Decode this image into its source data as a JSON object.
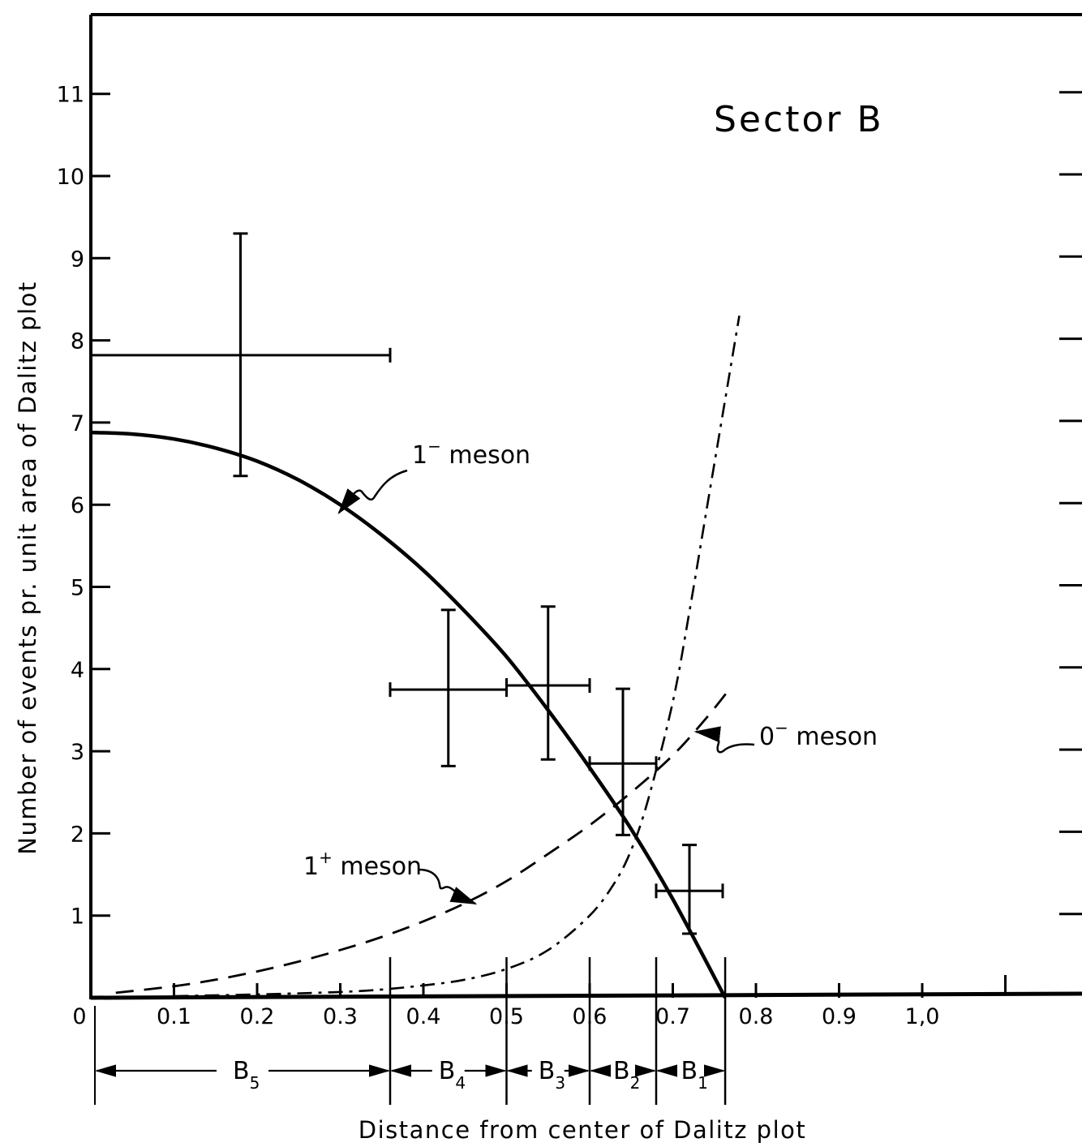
{
  "chart_data": {
    "type": "line",
    "title": "Sector B",
    "xlabel": "Distance from center of Dalitz plot",
    "ylabel": "Number of events pr. unit area of Dalitz plot",
    "xlim": [
      0,
      1.2
    ],
    "ylim": [
      0,
      12
    ],
    "x_tick_labels": [
      {
        "x": 0,
        "label": "0"
      },
      {
        "x": 0.1,
        "label": "0.1"
      },
      {
        "x": 0.2,
        "label": "0.2"
      },
      {
        "x": 0.3,
        "label": "0.3"
      },
      {
        "x": 0.4,
        "label": "0.4"
      },
      {
        "x": 0.5,
        "label": "0.5"
      },
      {
        "x": 0.6,
        "label": "0.6"
      },
      {
        "x": 0.7,
        "label": "0.7"
      },
      {
        "x": 0.8,
        "label": "0.8"
      },
      {
        "x": 0.9,
        "label": "0.9"
      },
      {
        "x": 1.0,
        "label": "1,0"
      }
    ],
    "y_tick_labels": [
      {
        "y": 1,
        "label": "1"
      },
      {
        "y": 2,
        "label": "2"
      },
      {
        "y": 3,
        "label": "3"
      },
      {
        "y": 4,
        "label": "4"
      },
      {
        "y": 5,
        "label": "5"
      },
      {
        "y": 6,
        "label": "6"
      },
      {
        "y": 7,
        "label": "7"
      },
      {
        "y": 8,
        "label": "8"
      },
      {
        "y": 9,
        "label": "9"
      },
      {
        "y": 10,
        "label": "10"
      },
      {
        "y": 11,
        "label": "11"
      }
    ],
    "grid": false,
    "series": [
      {
        "name": "1⁻ meson",
        "style": "solid",
        "x": [
          0.0,
          0.05,
          0.1,
          0.15,
          0.2,
          0.25,
          0.3,
          0.35,
          0.4,
          0.45,
          0.5,
          0.55,
          0.6,
          0.65,
          0.7,
          0.763
        ],
        "y": [
          6.88,
          6.86,
          6.8,
          6.69,
          6.53,
          6.3,
          6.0,
          5.63,
          5.2,
          4.7,
          4.15,
          3.5,
          2.8,
          2.05,
          1.2,
          0.0
        ]
      },
      {
        "name": "0⁻ meson",
        "style": "dashed",
        "x": [
          0.03,
          0.1,
          0.15,
          0.2,
          0.25,
          0.3,
          0.35,
          0.4,
          0.45,
          0.5,
          0.55,
          0.6,
          0.65,
          0.7,
          0.74,
          0.77
        ],
        "y": [
          0.06,
          0.14,
          0.22,
          0.32,
          0.44,
          0.58,
          0.74,
          0.93,
          1.15,
          1.42,
          1.75,
          2.1,
          2.5,
          2.95,
          3.4,
          3.78
        ]
      },
      {
        "name": "1⁺ meson",
        "style": "dash-dot",
        "x": [
          0.1,
          0.2,
          0.3,
          0.35,
          0.4,
          0.45,
          0.5,
          0.55,
          0.6,
          0.63,
          0.65,
          0.67,
          0.7,
          0.72,
          0.74,
          0.76,
          0.78
        ],
        "y": [
          0.02,
          0.04,
          0.07,
          0.1,
          0.15,
          0.22,
          0.35,
          0.58,
          1.0,
          1.4,
          1.8,
          2.4,
          3.6,
          4.7,
          5.9,
          7.1,
          8.3
        ]
      }
    ],
    "data_points": [
      {
        "x": 0.18,
        "y": 7.82,
        "xerr": [
          0.0,
          0.36
        ],
        "yerr": [
          6.35,
          9.3
        ]
      },
      {
        "x": 0.43,
        "y": 3.75,
        "xerr": [
          0.36,
          0.5
        ],
        "yerr": [
          2.82,
          4.72
        ]
      },
      {
        "x": 0.55,
        "y": 3.8,
        "xerr": [
          0.5,
          0.6
        ],
        "yerr": [
          2.9,
          4.76
        ]
      },
      {
        "x": 0.64,
        "y": 2.85,
        "xerr": [
          0.6,
          0.68
        ],
        "yerr": [
          1.98,
          3.76
        ]
      },
      {
        "x": 0.72,
        "y": 1.3,
        "xerr": [
          0.68,
          0.76
        ],
        "yerr": [
          0.78,
          1.86
        ]
      }
    ],
    "annotations": [
      {
        "text": "1",
        "sup": "−",
        "suffix": " meson"
      },
      {
        "text": "0",
        "sup": "−",
        "suffix": " meson"
      },
      {
        "text": "1",
        "sup": "+",
        "suffix": " meson"
      }
    ],
    "sectors": [
      {
        "base": "B",
        "sub": "5",
        "from": 0.0,
        "to": 0.36
      },
      {
        "base": "B",
        "sub": "4",
        "from": 0.36,
        "to": 0.5
      },
      {
        "base": "B",
        "sub": "3",
        "from": 0.5,
        "to": 0.6
      },
      {
        "base": "B",
        "sub": "2",
        "from": 0.6,
        "to": 0.68
      },
      {
        "base": "B",
        "sub": "1",
        "from": 0.68,
        "to": 0.763
      }
    ]
  }
}
